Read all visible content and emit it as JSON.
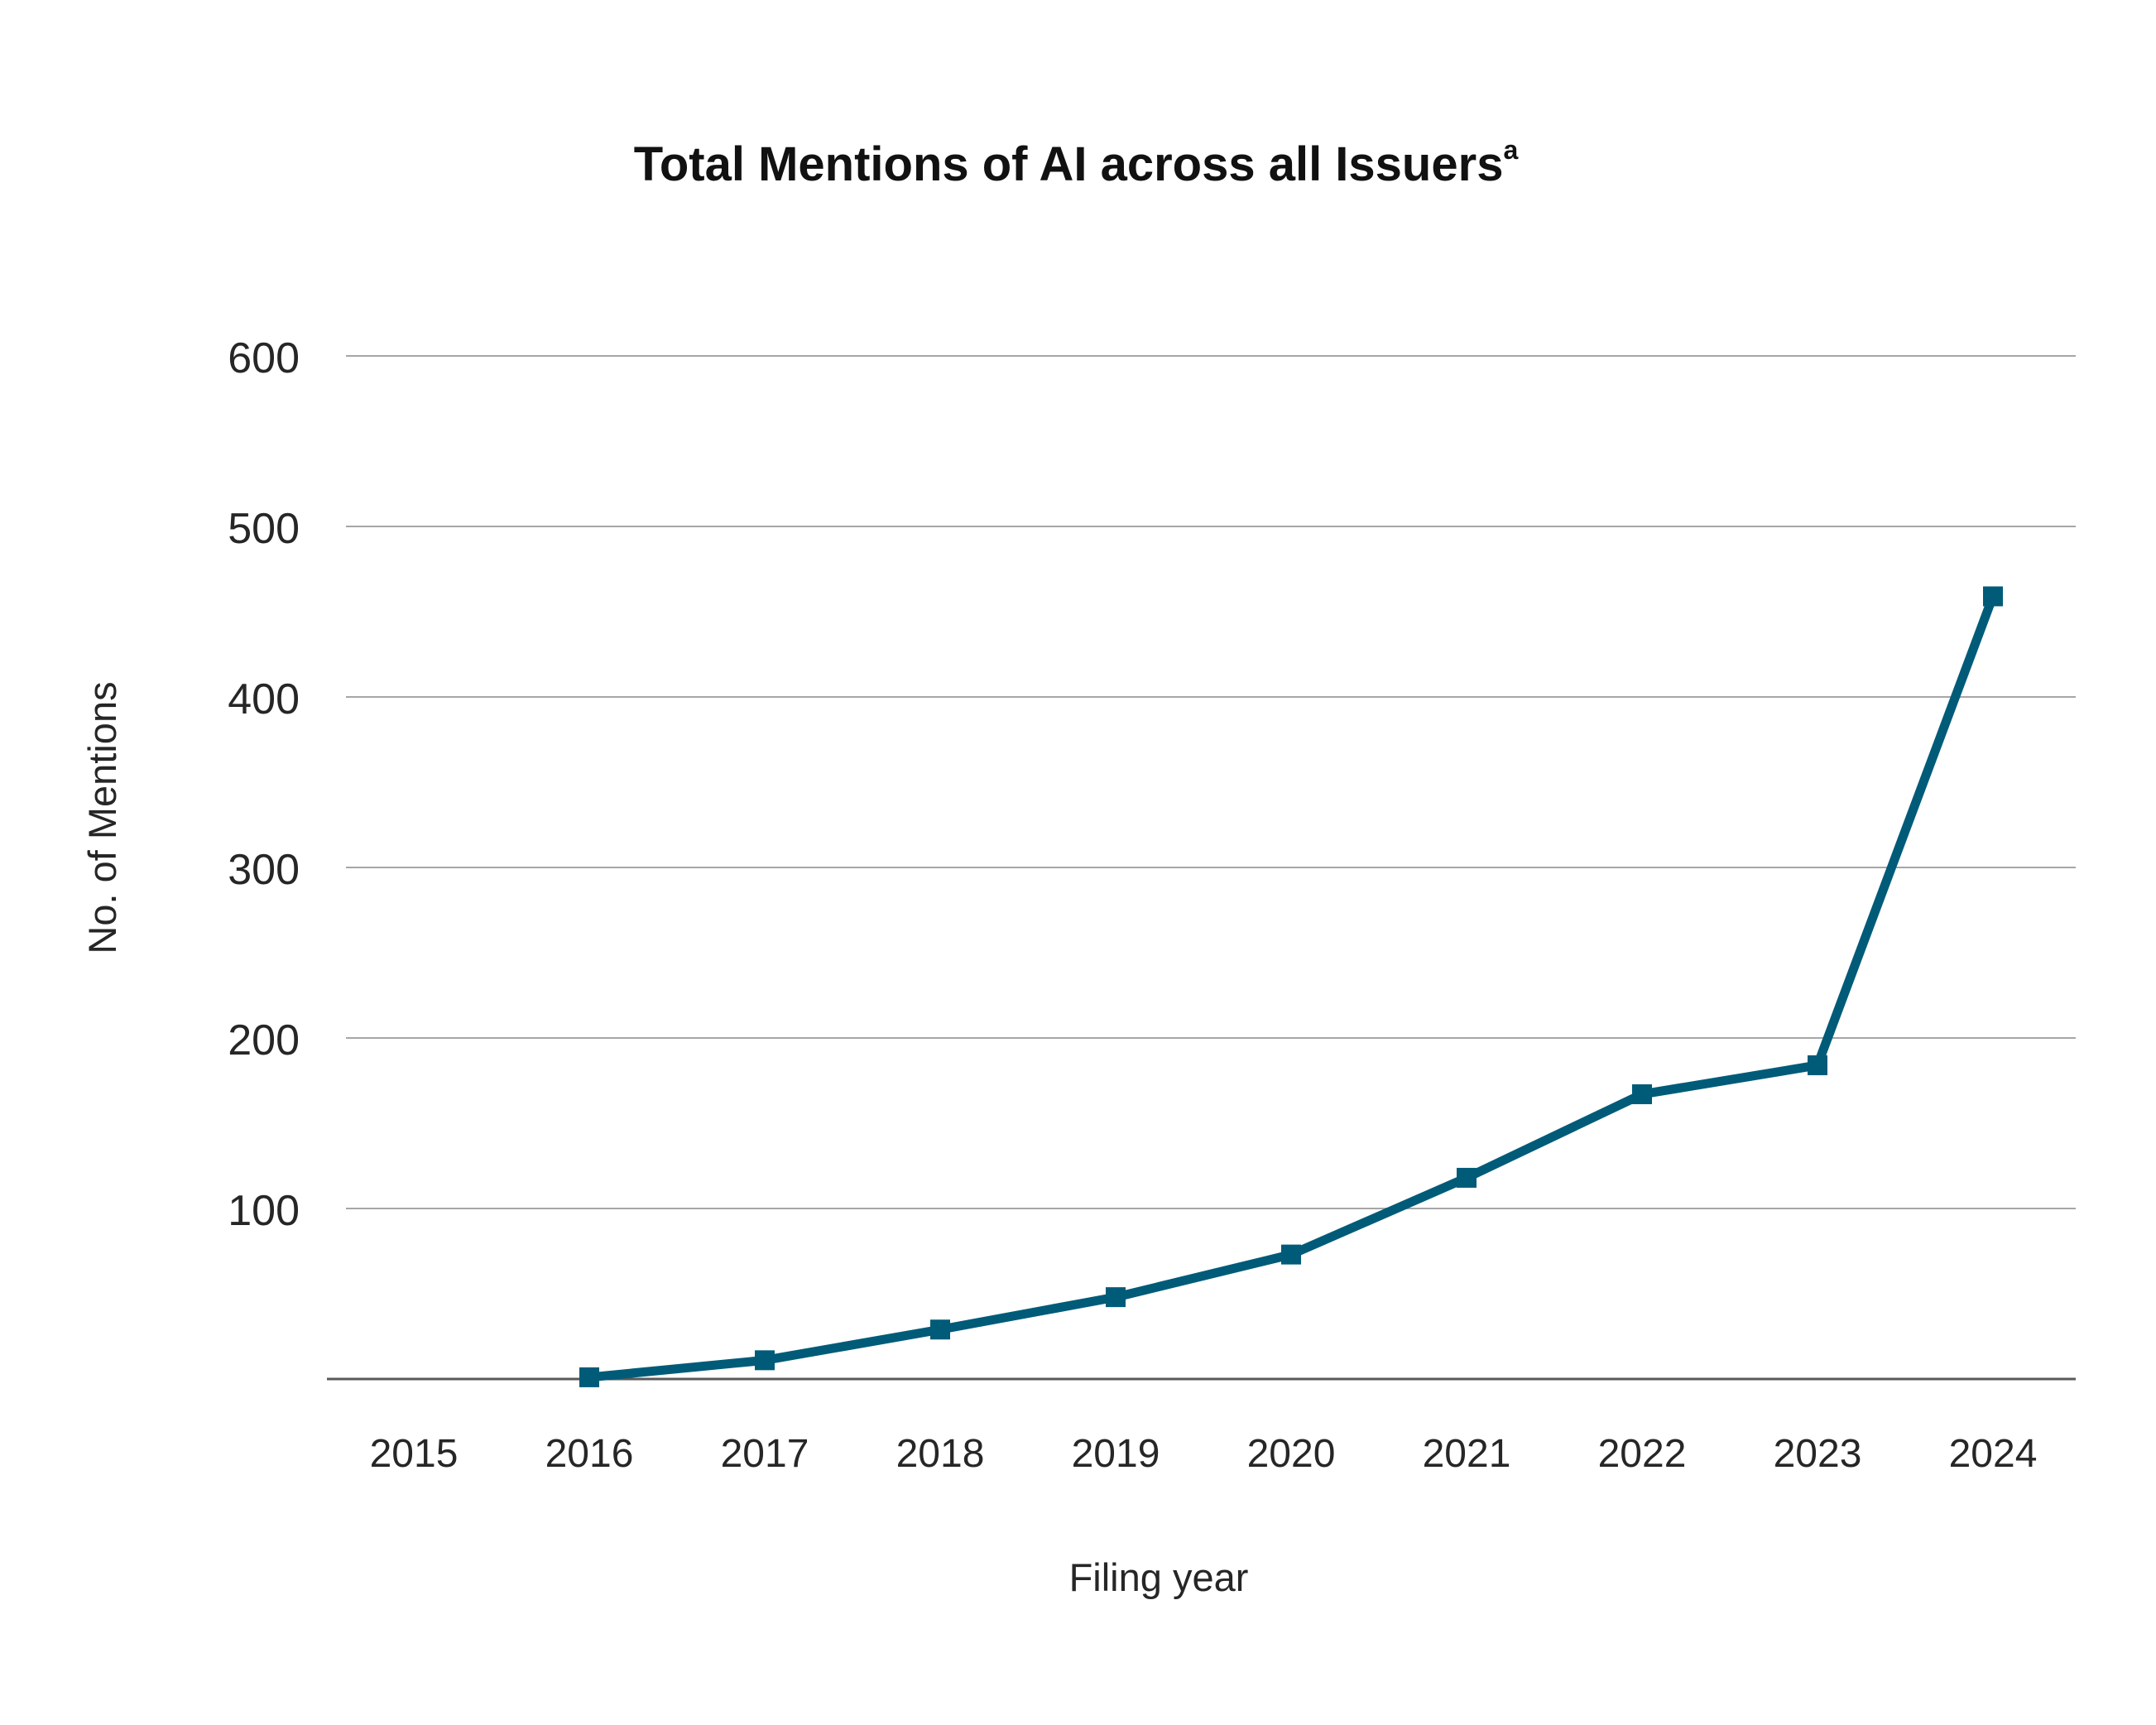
{
  "chart_data": {
    "type": "line",
    "title": "Total Mentions of AI across all Issuers",
    "title_superscript": "a",
    "xlabel": "Filing year",
    "ylabel": "No. of Mentions",
    "categories": [
      "2015",
      "2016",
      "2017",
      "2018",
      "2019",
      "2020",
      "2021",
      "2022",
      "2023",
      "2024"
    ],
    "yticks": [
      "100",
      "200",
      "300",
      "400",
      "500",
      "600"
    ],
    "ylim": [
      0,
      600
    ],
    "grid": true,
    "series": [
      {
        "x": [
          "2016",
          "2017",
          "2018",
          "2019",
          "2020",
          "2021",
          "2022",
          "2023",
          "2024"
        ],
        "values": [
          1,
          11,
          29,
          48,
          73,
          118,
          167,
          184,
          459
        ]
      }
    ],
    "colors": {
      "line": "#005b78",
      "grid": "#a6a6a6",
      "axis": "#595959",
      "text": "#262626"
    }
  }
}
